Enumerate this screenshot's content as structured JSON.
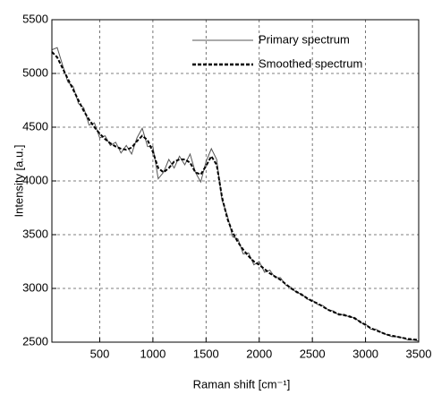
{
  "chart_data": {
    "type": "line",
    "x_label": "Raman shift [cm⁻¹]",
    "y_label": "Intensity [a.u.]",
    "x": [
      50,
      100,
      150,
      200,
      250,
      300,
      350,
      400,
      450,
      500,
      550,
      600,
      650,
      700,
      750,
      800,
      850,
      900,
      950,
      1000,
      1050,
      1100,
      1150,
      1200,
      1250,
      1300,
      1350,
      1400,
      1450,
      1500,
      1550,
      1600,
      1650,
      1700,
      1750,
      1800,
      1850,
      1900,
      1950,
      2000,
      2050,
      2100,
      2150,
      2200,
      2250,
      2300,
      2350,
      2400,
      2450,
      2500,
      2550,
      2600,
      2650,
      2700,
      2750,
      2800,
      2850,
      2900,
      2950,
      3000,
      3050,
      3100,
      3150,
      3200,
      3250,
      3300,
      3350,
      3400,
      3450,
      3500
    ],
    "series": [
      {
        "name": "Primary spectrum",
        "color": "#555555",
        "dash": false,
        "values": [
          5220,
          5240,
          5080,
          4920,
          4880,
          4720,
          4680,
          4520,
          4540,
          4400,
          4420,
          4330,
          4360,
          4260,
          4330,
          4250,
          4400,
          4490,
          4320,
          4320,
          4020,
          4080,
          4200,
          4120,
          4230,
          4150,
          4250,
          4080,
          3990,
          4180,
          4300,
          4200,
          3820,
          3680,
          3480,
          3460,
          3320,
          3330,
          3220,
          3250,
          3150,
          3170,
          3100,
          3100,
          3030,
          3010,
          2960,
          2950,
          2900,
          2890,
          2850,
          2840,
          2800,
          2790,
          2750,
          2760,
          2730,
          2730,
          2680,
          2670,
          2620,
          2620,
          2590,
          2570,
          2550,
          2550,
          2540,
          2520,
          2520,
          2510
        ]
      },
      {
        "name": "Smoothed spectrum",
        "color": "#000000",
        "dash": true,
        "values": [
          5200,
          5150,
          5050,
          4950,
          4850,
          4750,
          4650,
          4570,
          4500,
          4440,
          4390,
          4350,
          4320,
          4300,
          4290,
          4310,
          4370,
          4420,
          4380,
          4270,
          4120,
          4080,
          4120,
          4180,
          4200,
          4200,
          4170,
          4080,
          4060,
          4140,
          4230,
          4150,
          3850,
          3650,
          3520,
          3430,
          3360,
          3300,
          3250,
          3220,
          3180,
          3140,
          3110,
          3080,
          3040,
          3000,
          2970,
          2940,
          2910,
          2880,
          2860,
          2830,
          2800,
          2780,
          2760,
          2750,
          2740,
          2720,
          2690,
          2660,
          2630,
          2610,
          2590,
          2570,
          2560,
          2550,
          2540,
          2530,
          2525,
          2520
        ]
      }
    ],
    "xlim": [
      50,
      3500
    ],
    "xticks": [
      500,
      1000,
      1500,
      2000,
      2500,
      3000,
      3500
    ],
    "ylim": [
      2500,
      5500
    ],
    "yticks": [
      2500,
      3000,
      3500,
      4000,
      4500,
      5000,
      5500
    ],
    "grid": true,
    "legend": "upper right"
  }
}
